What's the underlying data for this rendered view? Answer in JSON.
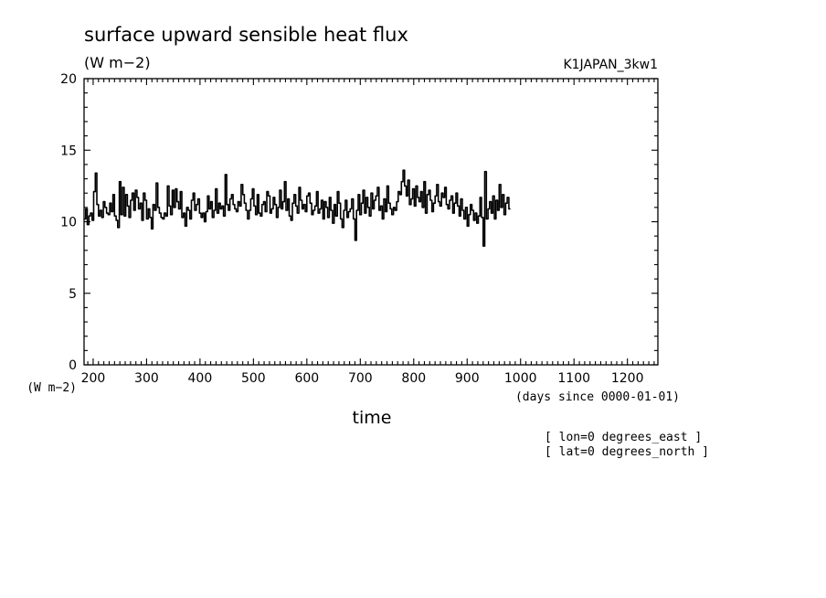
{
  "chart_data": {
    "type": "line",
    "title": "surface upward sensible heat flux",
    "units_label": "(W m−2)",
    "experiment": "K1JAPAN_3kw1",
    "ylabel": "(W m−2)",
    "xlabel": "time",
    "xunits": "(days since 0000-01-01)",
    "xlim": [
      183,
      1257
    ],
    "ylim": [
      0,
      20
    ],
    "x_ticks": [
      200,
      300,
      400,
      500,
      600,
      700,
      800,
      900,
      1000,
      1100,
      1200
    ],
    "y_ticks": [
      0,
      5,
      10,
      15,
      20
    ],
    "grid": false,
    "annotations": [
      "[ lon=0 degrees_east ]",
      "[ lat=0 degrees_north ]"
    ],
    "series": [
      {
        "x_start": 183,
        "x_step": 3,
        "values": [
          10.2,
          10.9,
          9.8,
          10.4,
          10.6,
          10.1,
          12.1,
          13.4,
          11.2,
          10.4,
          10.8,
          10.3,
          11.4,
          11.0,
          10.6,
          10.5,
          11.3,
          10.7,
          11.9,
          10.4,
          10.1,
          9.6,
          12.8,
          10.5,
          12.4,
          10.4,
          11.9,
          11.1,
          10.3,
          11.5,
          12.0,
          10.8,
          12.2,
          11.7,
          10.9,
          11.3,
          10.1,
          12.0,
          11.5,
          10.2,
          10.9,
          10.3,
          9.5,
          11.2,
          10.8,
          12.7,
          11.0,
          10.6,
          10.3,
          10.2,
          10.6,
          10.4,
          12.5,
          11.1,
          10.5,
          12.2,
          11.0,
          12.3,
          11.4,
          10.9,
          12.1,
          10.3,
          10.6,
          9.7,
          11.0,
          10.8,
          10.2,
          11.5,
          12.0,
          10.8,
          11.2,
          11.6,
          10.6,
          10.3,
          10.6,
          10.0,
          10.7,
          11.8,
          10.9,
          11.4,
          10.3,
          10.8,
          12.3,
          10.6,
          11.3,
          10.9,
          11.1,
          10.4,
          13.3,
          11.2,
          10.8,
          11.6,
          11.9,
          11.2,
          10.9,
          10.7,
          11.4,
          11.1,
          12.6,
          11.9,
          11.3,
          10.8,
          10.2,
          10.8,
          11.6,
          12.3,
          11.1,
          10.5,
          11.9,
          10.6,
          10.4,
          11.2,
          11.4,
          10.7,
          12.1,
          11.8,
          10.6,
          10.9,
          11.7,
          11.2,
          10.3,
          11.0,
          12.2,
          10.9,
          11.4,
          12.8,
          10.8,
          11.6,
          10.4,
          10.1,
          11.3,
          11.9,
          11.1,
          10.6,
          12.4,
          11.5,
          10.9,
          11.2,
          10.7,
          11.8,
          12.0,
          11.3,
          10.5,
          10.8,
          11.1,
          12.1,
          10.6,
          10.9,
          11.5,
          10.2,
          11.4,
          11.0,
          10.3,
          11.7,
          10.8,
          9.9,
          11.2,
          10.4,
          12.1,
          11.3,
          10.2,
          9.6,
          10.8,
          11.5,
          10.3,
          10.7,
          10.9,
          11.6,
          10.2,
          8.7,
          10.8,
          11.9,
          10.5,
          11.3,
          12.2,
          10.6,
          11.7,
          11.0,
          10.4,
          12.0,
          10.9,
          11.5,
          11.8,
          12.4,
          10.8,
          11.1,
          10.2,
          11.6,
          10.7,
          12.5,
          11.3,
          10.9,
          10.5,
          11.0,
          10.8,
          11.4,
          12.1,
          11.9,
          12.8,
          13.6,
          12.5,
          11.8,
          12.9,
          11.2,
          11.6,
          12.3,
          11.1,
          12.5,
          11.7,
          11.4,
          12.1,
          11.0,
          12.8,
          10.6,
          11.9,
          12.2,
          11.5,
          10.7,
          11.3,
          11.8,
          12.6,
          11.4,
          11.1,
          12.0,
          11.7,
          12.4,
          11.2,
          10.9,
          11.5,
          11.8,
          10.6,
          11.3,
          12.0,
          11.1,
          10.4,
          11.6,
          10.8,
          10.2,
          11.0,
          9.7,
          10.5,
          11.2,
          10.8,
          10.1,
          10.6,
          9.9,
          10.4,
          11.7,
          10.3,
          8.3,
          13.5,
          10.2,
          10.9,
          11.4,
          10.6,
          11.8,
          10.2,
          11.5,
          10.8,
          12.6,
          11.0,
          11.9,
          10.5,
          11.3,
          11.7,
          10.9
        ]
      }
    ]
  }
}
